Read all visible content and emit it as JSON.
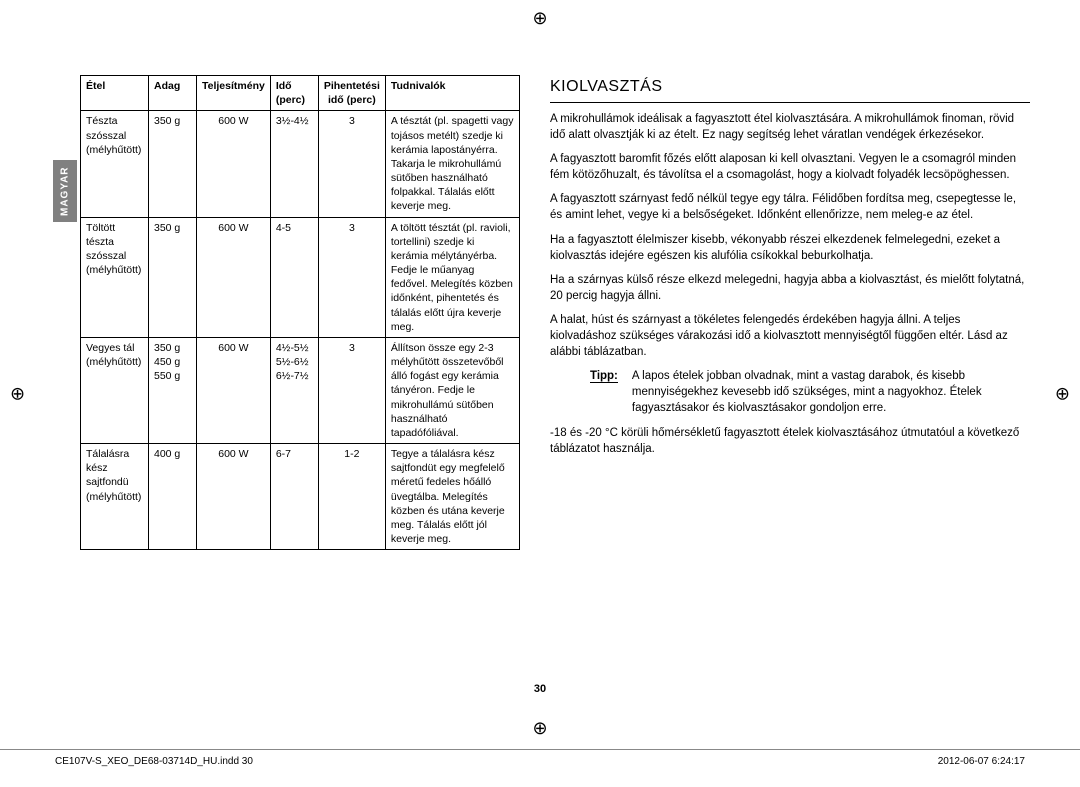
{
  "side_tab": "MAGYAR",
  "table": {
    "headers": {
      "etel": "Étel",
      "adag": "Adag",
      "telj": "Teljesítmény",
      "ido": "Idő (perc)",
      "pih": "Pihentetési idő (perc)",
      "tud": "Tudnivalók"
    },
    "rows": [
      {
        "etel": "Tészta szósszal (mélyhűtött)",
        "adag": "350 g",
        "telj": "600 W",
        "ido": "3½-4½",
        "pih": "3",
        "tud": "A tésztát (pl. spagetti vagy tojásos metélt) szedje ki kerámia lapostányérra. Takarja le mikrohullámú sütőben használható folpakkal. Tálalás előtt keverje meg."
      },
      {
        "etel": "Töltött tészta szósszal (mélyhűtött)",
        "adag": "350 g",
        "telj": "600 W",
        "ido": "4-5",
        "pih": "3",
        "tud": "A töltött tésztát (pl. ravioli, tortellini) szedje ki kerámia mélytányérba. Fedje le műanyag fedővel. Melegítés közben időnként, pihentetés és tálalás előtt újra keverje meg."
      },
      {
        "etel": "Vegyes tál (mélyhűtött)",
        "adag": "350 g\n450 g\n550 g",
        "telj": "600 W",
        "ido": "4½-5½\n5½-6½\n6½-7½",
        "pih": "3",
        "tud": "Állítson össze egy 2-3 mélyhűtött összetevőből álló fogást egy kerámia tányéron. Fedje le mikrohullámú sütőben használható tapadófóliával."
      },
      {
        "etel": "Tálalásra kész sajtfondü (mélyhűtött)",
        "adag": "400 g",
        "telj": "600 W",
        "ido": "6-7",
        "pih": "1-2",
        "tud": "Tegye a tálalásra kész sajtfondüt egy megfelelő méretű fedeles hőálló üvegtálba. Melegítés közben és utána keverje meg. Tálalás előtt jól keverje meg."
      }
    ]
  },
  "section_title": "KIOLVASZTÁS",
  "paragraphs": [
    "A mikrohullámok ideálisak a fagyasztott étel kiolvasztására. A mikrohullámok finoman, rövid idő alatt olvasztják ki az ételt. Ez nagy segítség lehet váratlan vendégek érkezésekor.",
    "A fagyasztott baromfit főzés előtt alaposan ki kell olvasztani. Vegyen le a csomagról minden fém kötözőhuzalt, és távolítsa el a csomagolást, hogy a kiolvadt folyadék lecsöpöghessen.",
    "A fagyasztott szárnyast fedő nélkül tegye egy tálra. Félidőben fordítsa meg, csepegtesse le, és amint lehet, vegye ki a belsőségeket. Időnként ellenőrizze, nem meleg-e az étel.",
    "Ha a fagyasztott élelmiszer kisebb, vékonyabb részei elkezdenek felmelegedni, ezeket a kiolvasztás idejére egészen kis alufólia csíkokkal beburkolhatja.",
    "Ha a szárnyas külső része elkezd melegedni, hagyja abba a kiolvasztást, és mielőtt folytatná, 20 percig hagyja állni.",
    "A halat, húst és szárnyast a tökéletes felengedés érdekében hagyja állni. A teljes kiolvadáshoz szükséges várakozási idő a kiolvasztott mennyiségtől függően eltér. Lásd az alábbi táblázatban."
  ],
  "tip": {
    "label": "Tipp:",
    "text": "A lapos ételek jobban olvadnak, mint a vastag darabok, és kisebb mennyiségekhez kevesebb idő szükséges, mint a nagyokhoz. Ételek fagyasztásakor és kiolvasztásakor gondoljon erre."
  },
  "post_tip": "-18 és -20 °C körüli hőmérsékletű fagyasztott ételek kiolvasztásához útmutatóul a következő táblázatot használja.",
  "page_number": "30",
  "footer": {
    "left": "CE107V-S_XEO_DE68-03714D_HU.indd   30",
    "right": "2012-06-07   6:24:17"
  }
}
